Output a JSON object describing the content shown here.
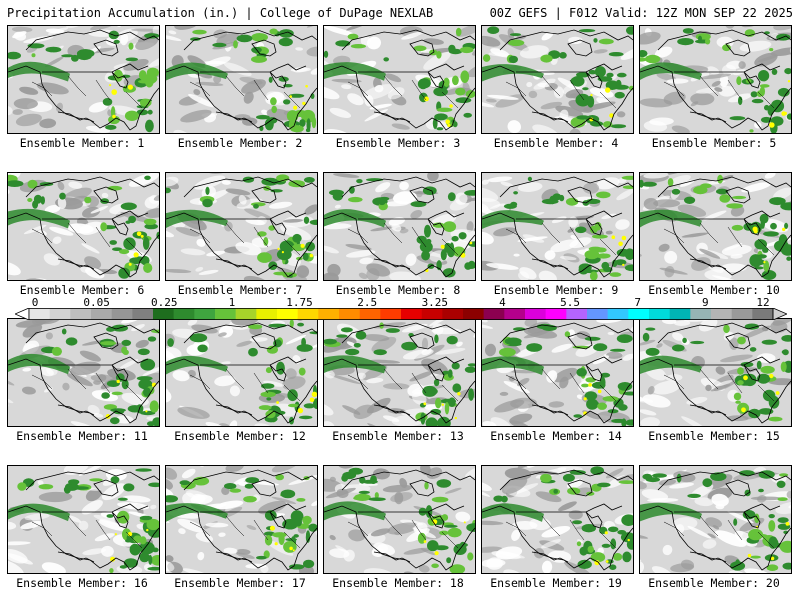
{
  "header": {
    "left": "Precipitation Accumulation (in.) | College of DuPage NEXLAB",
    "right": "00Z GEFS | F012 Valid: 12Z MON SEP 22 2025"
  },
  "panels": [
    {
      "label": "Ensemble Member: 1"
    },
    {
      "label": "Ensemble Member: 2"
    },
    {
      "label": "Ensemble Member: 3"
    },
    {
      "label": "Ensemble Member: 4"
    },
    {
      "label": "Ensemble Member: 5"
    },
    {
      "label": "Ensemble Member: 6"
    },
    {
      "label": "Ensemble Member: 7"
    },
    {
      "label": "Ensemble Member: 8"
    },
    {
      "label": "Ensemble Member: 9"
    },
    {
      "label": "Ensemble Member: 10"
    },
    {
      "label": "Ensemble Member: 11"
    },
    {
      "label": "Ensemble Member: 12"
    },
    {
      "label": "Ensemble Member: 13"
    },
    {
      "label": "Ensemble Member: 14"
    },
    {
      "label": "Ensemble Member: 15"
    },
    {
      "label": "Ensemble Member: 16"
    },
    {
      "label": "Ensemble Member: 17"
    },
    {
      "label": "Ensemble Member: 18"
    },
    {
      "label": "Ensemble Member: 19"
    },
    {
      "label": "Ensemble Member: 20"
    }
  ],
  "colorbar": {
    "tick_labels": [
      "0",
      "0.05",
      "0.25",
      "1",
      "1.75",
      "2.5",
      "3.25",
      "4",
      "5.5",
      "7",
      "9",
      "12"
    ],
    "colors": [
      "#e6e6e6",
      "#d2d2d2",
      "#bebebe",
      "#aaaaaa",
      "#969696",
      "#808080",
      "#1e6e1e",
      "#2e8b2e",
      "#3fa53f",
      "#66c23a",
      "#a7d42a",
      "#e8f000",
      "#ffff00",
      "#ffd700",
      "#ffb000",
      "#ff8c00",
      "#ff6400",
      "#ff3c00",
      "#e60000",
      "#c80000",
      "#aa0000",
      "#8c0000",
      "#8c0050",
      "#b4008c",
      "#dc00dc",
      "#ff00ff",
      "#b464ff",
      "#6496ff",
      "#32c8ff",
      "#00ffff",
      "#00dcdc",
      "#00b4b4",
      "#96b4b4",
      "#b4b4b4",
      "#9a9a9a",
      "#7a7a7a"
    ]
  },
  "map_colors": {
    "background": "#d8d8d8",
    "light_precip": "#ffffff",
    "trace": "#9a9a9a",
    "green": "#2e8b2e",
    "light_green": "#66c23a",
    "yellow": "#ffff00",
    "outline": "#000000"
  }
}
